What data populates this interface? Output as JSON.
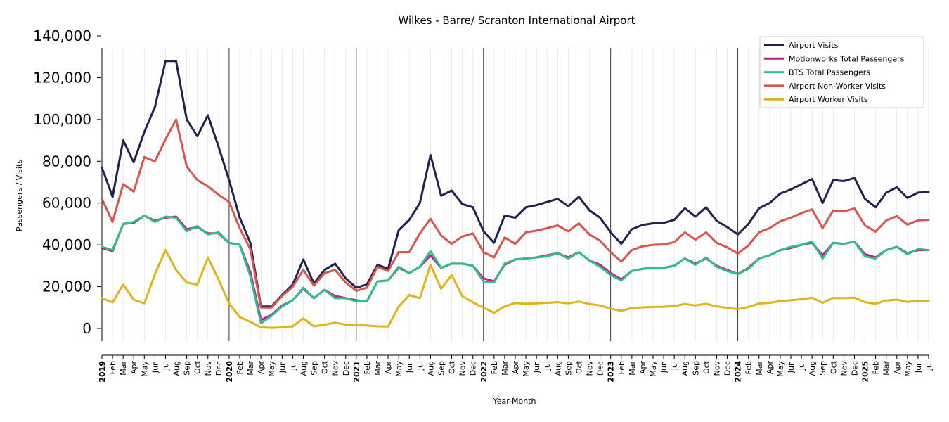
{
  "chart_data": {
    "type": "line",
    "title": "Wilkes - Barre/ Scranton International Airport",
    "xlabel": "Year-Month",
    "ylabel": "Passengers / Visits",
    "ylim": [
      -6000,
      140000
    ],
    "y_ticks": [
      "0",
      "20,000",
      "40,000",
      "60,000",
      "80,000",
      "100,000",
      "120,000",
      "140,000"
    ],
    "y_tick_values": [
      0,
      20000,
      40000,
      60000,
      80000,
      100000,
      120000,
      140000
    ],
    "x_tick_labels": [
      "2019",
      "Feb",
      "Mar",
      "Apr",
      "May",
      "Jun",
      "Jul",
      "Aug",
      "Sep",
      "Oct",
      "Nov",
      "Dec",
      "2020",
      "Feb",
      "Mar",
      "Apr",
      "May",
      "Jun",
      "Jul",
      "Aug",
      "Sep",
      "Oct",
      "Nov",
      "Dec",
      "2021",
      "Feb",
      "Mar",
      "Apr",
      "May",
      "Jun",
      "Jul",
      "Aug",
      "Sep",
      "Oct",
      "Nov",
      "Dec",
      "2022",
      "Feb",
      "Mar",
      "Apr",
      "May",
      "Jun",
      "Jul",
      "Aug",
      "Sep",
      "Oct",
      "Nov",
      "Dec",
      "2023",
      "Feb",
      "Mar",
      "Apr",
      "May",
      "Jun",
      "Jul",
      "Aug",
      "Sep",
      "Oct",
      "Nov",
      "Dec",
      "2024",
      "Feb",
      "Mar",
      "Apr",
      "May",
      "Jun",
      "Jul",
      "Aug",
      "Sep",
      "Oct",
      "Nov",
      "Dec",
      "2025",
      "Feb",
      "Mar",
      "Apr",
      "May",
      "Jun",
      "Jul"
    ],
    "grid": "vertical",
    "legend_position": "top-right",
    "series": [
      {
        "name": "Airport Visits",
        "color": "#21224f",
        "values": [
          77000,
          63000,
          90000,
          79500,
          94000,
          106000,
          128000,
          128000,
          100000,
          92000,
          102000,
          87000,
          71000,
          53000,
          41000,
          10500,
          10500,
          16000,
          21000,
          33000,
          21500,
          28000,
          31000,
          24000,
          19500,
          21000,
          30500,
          28500,
          47000,
          52000,
          60000,
          83000,
          63500,
          66000,
          59500,
          58000,
          46500,
          41000,
          54000,
          53000,
          58000,
          59000,
          60500,
          62000,
          58500,
          63000,
          56500,
          53000,
          46000,
          40500,
          47500,
          49500,
          50300,
          50500,
          52000,
          57500,
          53500,
          58000,
          51500,
          48500,
          45000,
          50000,
          57500,
          60000,
          64500,
          66500,
          69000,
          71500,
          60000,
          71000,
          70500,
          72000,
          62000,
          58000,
          65000,
          67500,
          62500,
          65000,
          65300
        ]
      },
      {
        "name": "Motionworks Total Passengers",
        "color": "#c51b8a",
        "values": [
          38500,
          37000,
          50000,
          50500,
          54000,
          51500,
          53000,
          53500,
          47500,
          48500,
          45500,
          45500,
          41000,
          40000,
          27000,
          4000,
          6500,
          11000,
          13500,
          19000,
          14500,
          18500,
          15500,
          14500,
          13500,
          13000,
          22500,
          23000,
          29000,
          26500,
          29500,
          35000,
          29000,
          31000,
          31000,
          30000,
          24000,
          22500,
          30500,
          33000,
          33500,
          34000,
          35000,
          36000,
          34000,
          36500,
          32500,
          30500,
          26500,
          23500,
          27500,
          28500,
          29000,
          29000,
          30000,
          33500,
          31000,
          33500,
          30000,
          28000,
          26000,
          29000,
          33500,
          35000,
          37500,
          38500,
          40000,
          41000,
          35000,
          41000,
          40500,
          41500,
          35500,
          34000,
          37500,
          39000,
          36000,
          37500,
          37500
        ]
      },
      {
        "name": "BTS Total Passengers",
        "color": "#2bbf8c",
        "values": [
          39000,
          37500,
          50000,
          51000,
          54000,
          51000,
          53500,
          53000,
          46500,
          49000,
          45000,
          46000,
          41000,
          40000,
          25000,
          2500,
          6000,
          10500,
          13500,
          19500,
          14500,
          18500,
          14500,
          14500,
          13000,
          13000,
          22500,
          23000,
          29500,
          26500,
          29500,
          37000,
          29000,
          31000,
          31000,
          30000,
          22500,
          22000,
          31000,
          33000,
          33500,
          34000,
          34500,
          36000,
          33500,
          36500,
          32500,
          29500,
          25500,
          23000,
          27500,
          28500,
          29000,
          29000,
          30000,
          33500,
          30500,
          34000,
          29500,
          27500,
          26000,
          28500,
          33500,
          35000,
          37500,
          39000,
          40000,
          41500,
          33500,
          41000,
          40500,
          41500,
          34500,
          33500,
          37500,
          39000,
          35500,
          38000,
          37500
        ]
      },
      {
        "name": "Airport Non-Worker Visits",
        "color": "#d9534f",
        "values": [
          62000,
          51000,
          69000,
          65500,
          82000,
          80000,
          90500,
          100000,
          77500,
          71000,
          68000,
          64000,
          60500,
          48000,
          38000,
          10000,
          10000,
          15500,
          20000,
          28000,
          20500,
          26500,
          28000,
          22000,
          18000,
          19500,
          29500,
          27500,
          36500,
          36500,
          45500,
          52500,
          44500,
          40500,
          44000,
          45500,
          36500,
          34000,
          43500,
          40500,
          46000,
          46800,
          48000,
          49300,
          46500,
          50300,
          45000,
          42000,
          36500,
          32000,
          37500,
          39300,
          40000,
          40200,
          41300,
          46000,
          42500,
          46000,
          41000,
          38800,
          35800,
          39700,
          46000,
          48000,
          51300,
          53000,
          55200,
          57000,
          48000,
          56500,
          56000,
          57400,
          49300,
          46300,
          51700,
          53700,
          49700,
          51700,
          52000
        ]
      },
      {
        "name": "Airport Worker Visits",
        "color": "#e0b31a",
        "values": [
          14500,
          12500,
          21000,
          13800,
          12000,
          26000,
          37500,
          28000,
          22000,
          21000,
          34000,
          23500,
          12000,
          5500,
          3200,
          500,
          300,
          500,
          1000,
          4800,
          1000,
          1800,
          2800,
          1800,
          1500,
          1400,
          1000,
          900,
          10500,
          16000,
          14500,
          30500,
          19000,
          25500,
          15500,
          12500,
          10000,
          7500,
          10500,
          12200,
          11800,
          12000,
          12300,
          12600,
          12000,
          12900,
          11700,
          11000,
          9500,
          8400,
          9800,
          10100,
          10300,
          10400,
          10700,
          11700,
          11000,
          11800,
          10500,
          9900,
          9200,
          10300,
          11900,
          12300,
          13100,
          13500,
          14000,
          14700,
          12300,
          14600,
          14500,
          14700,
          12600,
          11800,
          13400,
          13800,
          12700,
          13200,
          13200
        ]
      }
    ]
  }
}
